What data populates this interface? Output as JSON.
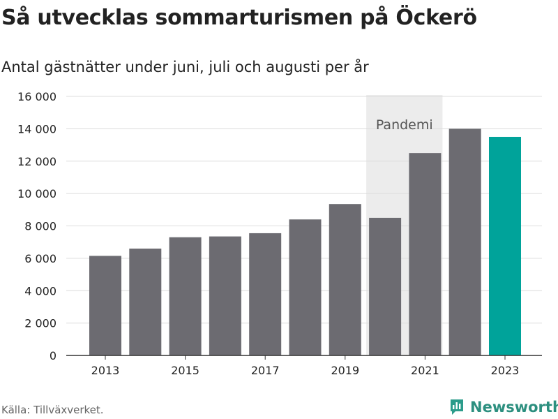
{
  "title": "Så utvecklas sommarturismen på Öckerö",
  "subtitle": "Antal gästnätter under juni, juli och augusti per år",
  "source": "Källa: Tillväxverket.",
  "brand": {
    "name": "Newsworthy",
    "icon": "newsworthy-logo-icon",
    "color": "#2c9c8b"
  },
  "colors": {
    "bar": "#6c6b71",
    "highlight": "#00a39a",
    "band": "#ececec",
    "grid": "#dcdcdc"
  },
  "chart_data": {
    "type": "bar",
    "categories": [
      "2013",
      "2014",
      "2015",
      "2016",
      "2017",
      "2018",
      "2019",
      "2020",
      "2021",
      "2022",
      "2023"
    ],
    "values": [
      6150,
      6600,
      7300,
      7350,
      7550,
      8400,
      9350,
      8500,
      12500,
      14000,
      13500
    ],
    "highlight_category": "2023",
    "x_tick_labels": [
      "2013",
      "2015",
      "2017",
      "2019",
      "2021",
      "2023"
    ],
    "y_ticks": [
      0,
      2000,
      4000,
      6000,
      8000,
      10000,
      12000,
      14000,
      16000
    ],
    "y_tick_labels": [
      "0",
      "2 000",
      "4 000",
      "6 000",
      "8 000",
      "10 000",
      "12 000",
      "14 000",
      "16 000"
    ],
    "ylim": [
      0,
      16000
    ],
    "grid": true,
    "xlabel": "",
    "ylabel": "",
    "annotation": {
      "label": "Pandemi",
      "from": "2020",
      "to": "2021"
    }
  }
}
